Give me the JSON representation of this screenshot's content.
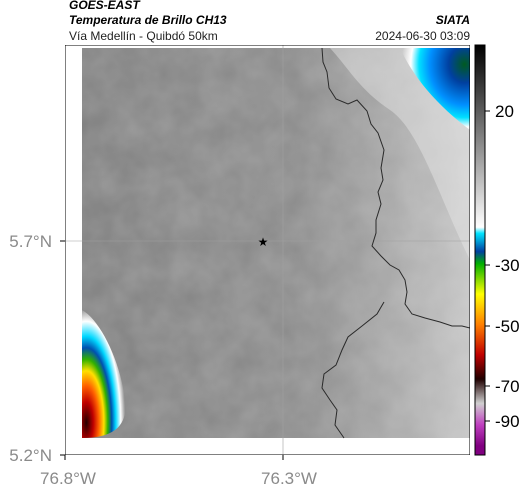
{
  "header": {
    "satellite": "GOES-EAST",
    "product": "Temperatura de Brillo CH13",
    "organization": "SIATA",
    "area": "Vía Medellín - Quibdó 50km",
    "timestamp": "2024-06-30 03:09"
  },
  "axes": {
    "lat_ticks": [
      "5.7°N",
      "5.2°N"
    ],
    "lon_ticks": [
      "76.8°W",
      "76.3°W"
    ]
  },
  "colorbar": {
    "ticks": [
      "20",
      "-30",
      "-50",
      "-70",
      "-90"
    ],
    "stops": [
      {
        "value": 40,
        "color": "#000000"
      },
      {
        "value": -20,
        "color": "#ffffff"
      },
      {
        "value": -22,
        "color": "#00e5ff"
      },
      {
        "value": -28,
        "color": "#0040a0"
      },
      {
        "value": -32,
        "color": "#00b000"
      },
      {
        "value": -42,
        "color": "#ffff00"
      },
      {
        "value": -52,
        "color": "#ff8000"
      },
      {
        "value": -62,
        "color": "#c00000"
      },
      {
        "value": -70,
        "color": "#200000"
      },
      {
        "value": -78,
        "color": "#d0d0d0"
      },
      {
        "value": -85,
        "color": "#c040c0"
      },
      {
        "value": -92,
        "color": "#800080"
      }
    ]
  },
  "marker": {
    "symbol": "★",
    "label": "star-marker"
  },
  "colors": {
    "background_gray": "#7d7d7d",
    "border_line": "#2a2a2a",
    "grid": "#a0a0a0"
  }
}
